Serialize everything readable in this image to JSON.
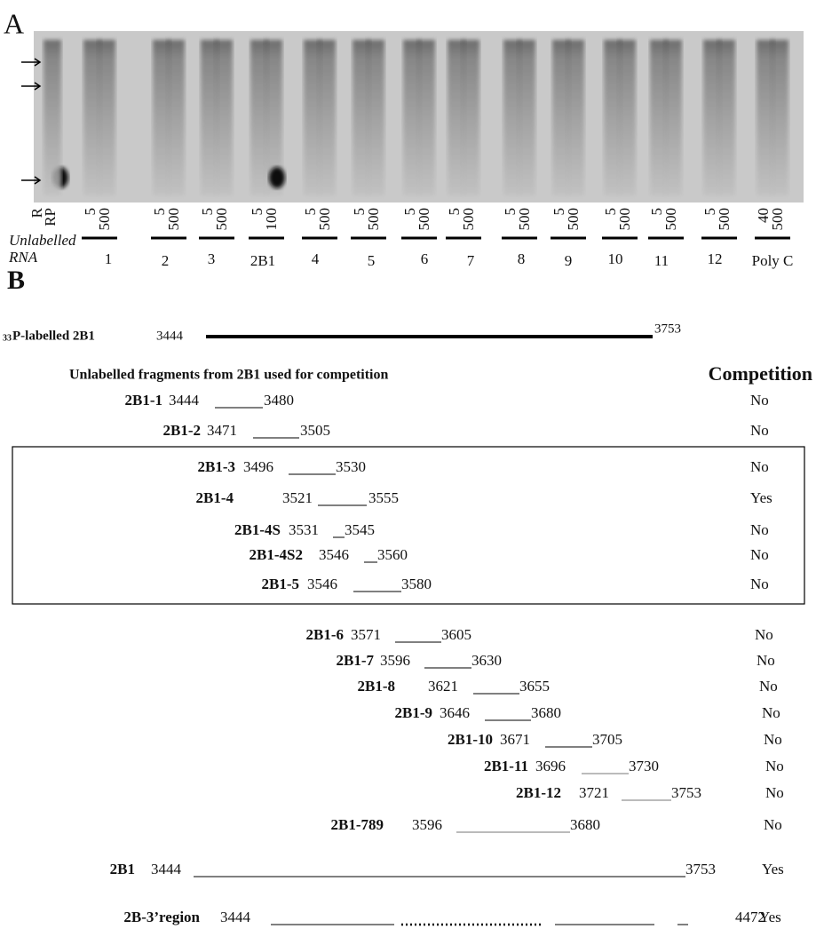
{
  "panel_a": {
    "label": "A",
    "lane_labels": [
      "R",
      "RP",
      "5",
      "500",
      "5",
      "500",
      "5",
      "500",
      "5",
      "100",
      "5",
      "500",
      "5",
      "500",
      "5",
      "500",
      "5",
      "500",
      "5",
      "500",
      "5",
      "500",
      "5",
      "500",
      "5",
      "500",
      "5",
      "500",
      "40",
      "500"
    ],
    "row_label": [
      "Unlabelled",
      "RNA"
    ],
    "groups": [
      "1",
      "2",
      "3",
      "2B1",
      "4",
      "5",
      "6",
      "7",
      "8",
      "9",
      "10",
      "11",
      "12",
      "Poly C"
    ]
  },
  "panel_b": {
    "label": "B",
    "probe": {
      "superscript": "33",
      "name": "P-labelled 2B1",
      "start": "3444",
      "end": "3753"
    },
    "heading": "Unlabelled fragments from 2B1 used for competition",
    "competition_heading": "Competition",
    "fragments": [
      {
        "name": "2B1-1",
        "start": "3444",
        "end": "3480",
        "competition": "No"
      },
      {
        "name": "2B1-2",
        "start": "3471",
        "end": "3505",
        "competition": "No"
      },
      {
        "name": "2B1-3",
        "start": "3496",
        "end": "3530",
        "competition": "No"
      },
      {
        "name": "2B1-4",
        "start": "3521",
        "end": "3555",
        "competition": "Yes"
      },
      {
        "name": "2B1-4S",
        "start": "3531",
        "end": "3545",
        "competition": "No"
      },
      {
        "name": "2B1-4S2",
        "start": "3546",
        "end": "3560",
        "competition": "No"
      },
      {
        "name": "2B1-5",
        "start": "3546",
        "end": "3580",
        "competition": "No"
      },
      {
        "name": "2B1-6",
        "start": "3571",
        "end": "3605",
        "competition": "No"
      },
      {
        "name": "2B1-7",
        "start": "3596",
        "end": "3630",
        "competition": "No"
      },
      {
        "name": "2B1-8",
        "start": "3621",
        "end": "3655",
        "competition": "No"
      },
      {
        "name": "2B1-9",
        "start": "3646",
        "end": "3680",
        "competition": "No"
      },
      {
        "name": "2B1-10",
        "start": "3671",
        "end": "3705",
        "competition": "No"
      },
      {
        "name": "2B1-11",
        "start": "3696",
        "end": "3730",
        "competition": "No"
      },
      {
        "name": "2B1-12",
        "start": "3721",
        "end": "3753",
        "competition": "No"
      },
      {
        "name": "2B1-789",
        "start": "3596",
        "end": "3680",
        "competition": "No"
      },
      {
        "name": "2B1",
        "start": "3444",
        "end": "3753",
        "competition": "Yes"
      },
      {
        "name": "2B-3’region",
        "start": "3444",
        "end": "4472",
        "competition": "Yes"
      }
    ]
  }
}
